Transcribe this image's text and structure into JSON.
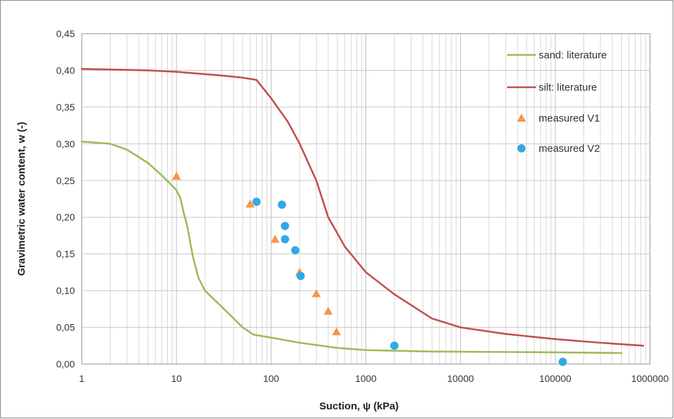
{
  "chart_data": {
    "type": "scatter",
    "title": "",
    "xlabel": "Suction, ψ (kPa)",
    "ylabel": "Gravimetric water content, w (-)",
    "xscale": "log",
    "xlim": [
      1,
      1000000
    ],
    "ylim": [
      0,
      0.45
    ],
    "x_ticks": [
      1,
      10,
      100,
      1000,
      10000,
      100000,
      1000000
    ],
    "x_tick_labels": [
      "1",
      "10",
      "100",
      "1000",
      "10000",
      "100000",
      "1000000"
    ],
    "y_ticks": [
      0,
      0.05,
      0.1,
      0.15,
      0.2,
      0.25,
      0.3,
      0.35,
      0.4,
      0.45
    ],
    "y_tick_labels": [
      "0,00",
      "0,05",
      "0,10",
      "0,15",
      "0,20",
      "0,25",
      "0,30",
      "0,35",
      "0,40",
      "0,45"
    ],
    "grid": true,
    "legend_position": "top-right",
    "series": [
      {
        "name": "sand: literature",
        "kind": "line",
        "color": "#9bbb59",
        "points": [
          [
            1,
            0.303
          ],
          [
            2,
            0.3
          ],
          [
            3,
            0.292
          ],
          [
            5,
            0.274
          ],
          [
            7,
            0.257
          ],
          [
            9,
            0.243
          ],
          [
            10,
            0.237
          ],
          [
            11,
            0.226
          ],
          [
            12,
            0.205
          ],
          [
            13,
            0.188
          ],
          [
            14,
            0.165
          ],
          [
            15,
            0.145
          ],
          [
            17,
            0.118
          ],
          [
            20,
            0.1
          ],
          [
            30,
            0.078
          ],
          [
            50,
            0.05
          ],
          [
            65,
            0.04
          ],
          [
            100,
            0.036
          ],
          [
            200,
            0.029
          ],
          [
            500,
            0.022
          ],
          [
            1000,
            0.019
          ],
          [
            5000,
            0.017
          ],
          [
            100000,
            0.016
          ],
          [
            500000,
            0.015
          ]
        ]
      },
      {
        "name": "silt: literature",
        "kind": "line",
        "color": "#c0504d",
        "points": [
          [
            1,
            0.402
          ],
          [
            5,
            0.4
          ],
          [
            10,
            0.398
          ],
          [
            30,
            0.393
          ],
          [
            50,
            0.39
          ],
          [
            70,
            0.387
          ],
          [
            100,
            0.362
          ],
          [
            150,
            0.33
          ],
          [
            200,
            0.3
          ],
          [
            300,
            0.25
          ],
          [
            400,
            0.2
          ],
          [
            600,
            0.16
          ],
          [
            1000,
            0.125
          ],
          [
            2000,
            0.095
          ],
          [
            5000,
            0.062
          ],
          [
            10000,
            0.05
          ],
          [
            30000,
            0.041
          ],
          [
            100000,
            0.034
          ],
          [
            300000,
            0.029
          ],
          [
            850000,
            0.025
          ]
        ]
      },
      {
        "name": "measured V1",
        "kind": "scatter",
        "marker": "triangle",
        "color": "#f79646",
        "points": [
          [
            10,
            0.256
          ],
          [
            60,
            0.218
          ],
          [
            110,
            0.17
          ],
          [
            200,
            0.125
          ],
          [
            300,
            0.096
          ],
          [
            400,
            0.072
          ],
          [
            490,
            0.044
          ]
        ]
      },
      {
        "name": "measured V2",
        "kind": "scatter",
        "marker": "circle",
        "color": "#32a9e6",
        "points": [
          [
            70,
            0.221
          ],
          [
            130,
            0.217
          ],
          [
            140,
            0.188
          ],
          [
            140,
            0.17
          ],
          [
            180,
            0.155
          ],
          [
            205,
            0.12
          ],
          [
            2000,
            0.025
          ],
          [
            120000,
            0.003
          ]
        ]
      }
    ]
  }
}
